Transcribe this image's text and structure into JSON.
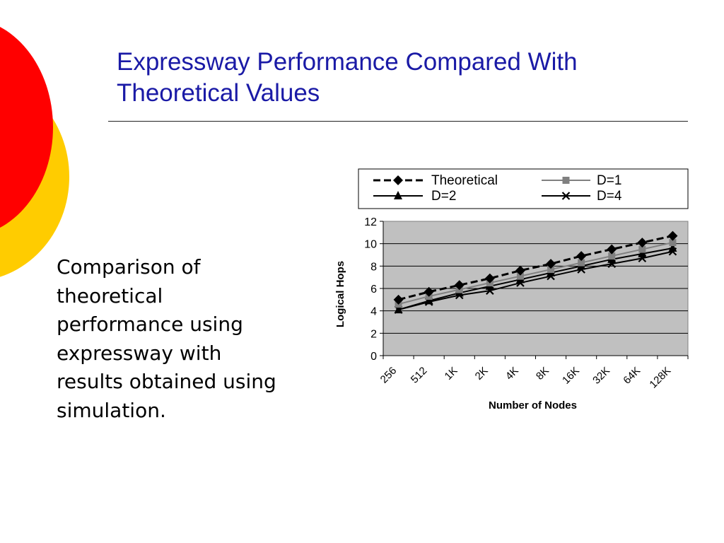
{
  "slide": {
    "title_lines": [
      "Expressway Performance Compared With",
      "Theoretical Values"
    ],
    "body_lines": [
      "Comparison of",
      "theoretical",
      "performance using",
      "expressway with",
      "results obtained using",
      "simulation."
    ]
  },
  "colors": {
    "title": "#1a1aa6",
    "deco_red": "#ff0000",
    "deco_yellow": "#ffcc00",
    "plot_area": "#c0c0c0"
  },
  "chart_data": {
    "type": "line",
    "xlabel": "Number of Nodes",
    "ylabel": "Logical Hops",
    "categories": [
      "256",
      "512",
      "1K",
      "2K",
      "4K",
      "8K",
      "16K",
      "32K",
      "64K",
      "128K"
    ],
    "ylim": [
      0,
      12
    ],
    "yticks": [
      0,
      2,
      4,
      6,
      8,
      10,
      12
    ],
    "grid": "horizontal",
    "legend_position": "top",
    "series": [
      {
        "name": "Theoretical",
        "marker": "diamond",
        "line": "dashed",
        "color": "#000000",
        "values": [
          5.0,
          5.7,
          6.3,
          6.9,
          7.6,
          8.2,
          8.9,
          9.5,
          10.1,
          10.7
        ]
      },
      {
        "name": "D=1",
        "marker": "square",
        "line": "solid",
        "color": "#808080",
        "values": [
          4.6,
          5.3,
          5.9,
          6.5,
          7.1,
          7.7,
          8.3,
          8.9,
          9.5,
          10.1
        ]
      },
      {
        "name": "D=2",
        "marker": "triangle",
        "line": "solid",
        "color": "#000000",
        "values": [
          4.1,
          4.9,
          5.6,
          6.2,
          6.8,
          7.4,
          8.0,
          8.6,
          9.1,
          9.6
        ]
      },
      {
        "name": "D=4",
        "marker": "x",
        "line": "solid",
        "color": "#000000",
        "values": [
          4.1,
          4.8,
          5.4,
          5.8,
          6.5,
          7.1,
          7.7,
          8.2,
          8.7,
          9.3
        ]
      }
    ]
  }
}
